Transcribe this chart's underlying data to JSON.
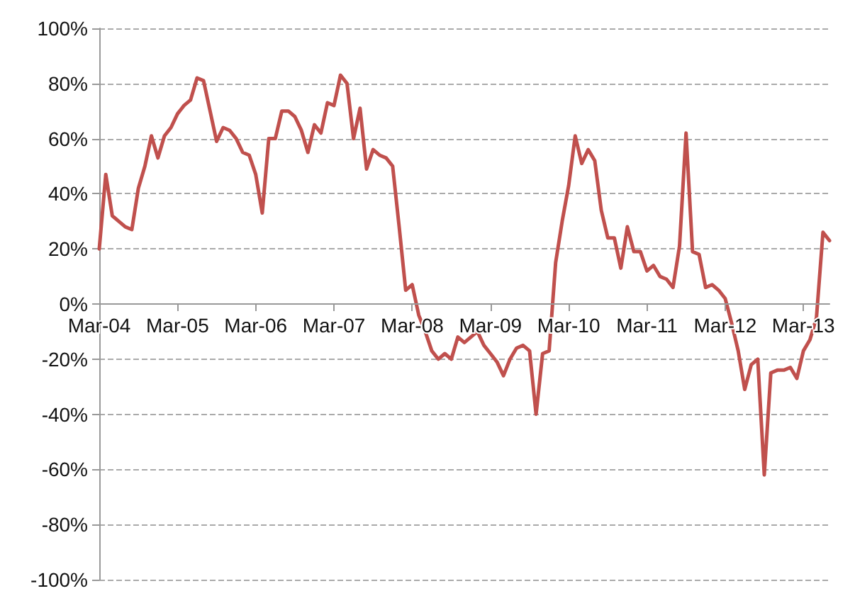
{
  "chart_data": {
    "type": "line",
    "categories": [
      "Mar-04",
      null,
      null,
      null,
      null,
      null,
      null,
      null,
      null,
      null,
      null,
      null,
      "Mar-05",
      null,
      null,
      null,
      null,
      null,
      null,
      null,
      null,
      null,
      null,
      null,
      "Mar-06",
      null,
      null,
      null,
      null,
      null,
      null,
      null,
      null,
      null,
      null,
      null,
      "Mar-07",
      null,
      null,
      null,
      null,
      null,
      null,
      null,
      null,
      null,
      null,
      null,
      "Mar-08",
      null,
      null,
      null,
      null,
      null,
      null,
      null,
      null,
      null,
      null,
      null,
      "Mar-09",
      null,
      null,
      null,
      null,
      null,
      null,
      null,
      null,
      null,
      null,
      null,
      "Mar-10",
      null,
      null,
      null,
      null,
      null,
      null,
      null,
      null,
      null,
      null,
      null,
      "Mar-11",
      null,
      null,
      null,
      null,
      null,
      null,
      null,
      null,
      null,
      null,
      null,
      "Mar-12",
      null,
      null,
      null,
      null,
      null,
      null,
      null,
      null,
      null,
      null,
      null,
      "Mar-13",
      null,
      null,
      null,
      null
    ],
    "series": [
      {
        "color": "#c0504d",
        "values": [
          20,
          47,
          32,
          30,
          28,
          27,
          42,
          50,
          61,
          53,
          61,
          64,
          69,
          72,
          74,
          82,
          81,
          70,
          59,
          64,
          63,
          60,
          55,
          54,
          47,
          33,
          60,
          60,
          70,
          70,
          68,
          63,
          55,
          65,
          62,
          73,
          72,
          83,
          80,
          60,
          71,
          49,
          56,
          54,
          53,
          50,
          28,
          5,
          7,
          -4,
          -10,
          -17,
          -20,
          -18,
          -20,
          -12,
          -14,
          -12,
          -10,
          -15,
          -18,
          -21,
          -26,
          -20,
          -16,
          -15,
          -17,
          -40,
          -18,
          -17,
          15,
          30,
          43,
          61,
          51,
          56,
          52,
          34,
          24,
          24,
          13,
          28,
          19,
          19,
          12,
          14,
          10,
          9,
          6,
          21,
          62,
          19,
          18,
          6,
          7,
          5,
          2,
          -7,
          -17,
          -31,
          -22,
          -20,
          -62,
          -25,
          -24,
          -24,
          -23,
          -27,
          -17,
          -13,
          -5,
          26,
          23
        ]
      }
    ],
    "ylim": [
      -100,
      100
    ],
    "yticks": [
      {
        "value": -100,
        "label": "-100%"
      },
      {
        "value": -80,
        "label": "-80%"
      },
      {
        "value": -60,
        "label": "-60%"
      },
      {
        "value": -40,
        "label": "-40%"
      },
      {
        "value": -20,
        "label": "-20%"
      },
      {
        "value": 0,
        "label": "0%"
      },
      {
        "value": 20,
        "label": "20%"
      },
      {
        "value": 40,
        "label": "40%"
      },
      {
        "value": 60,
        "label": "60%"
      },
      {
        "value": 80,
        "label": "80%"
      },
      {
        "value": 100,
        "label": "100%"
      }
    ],
    "grid": "y",
    "marker": "none",
    "line_style": "solid"
  }
}
